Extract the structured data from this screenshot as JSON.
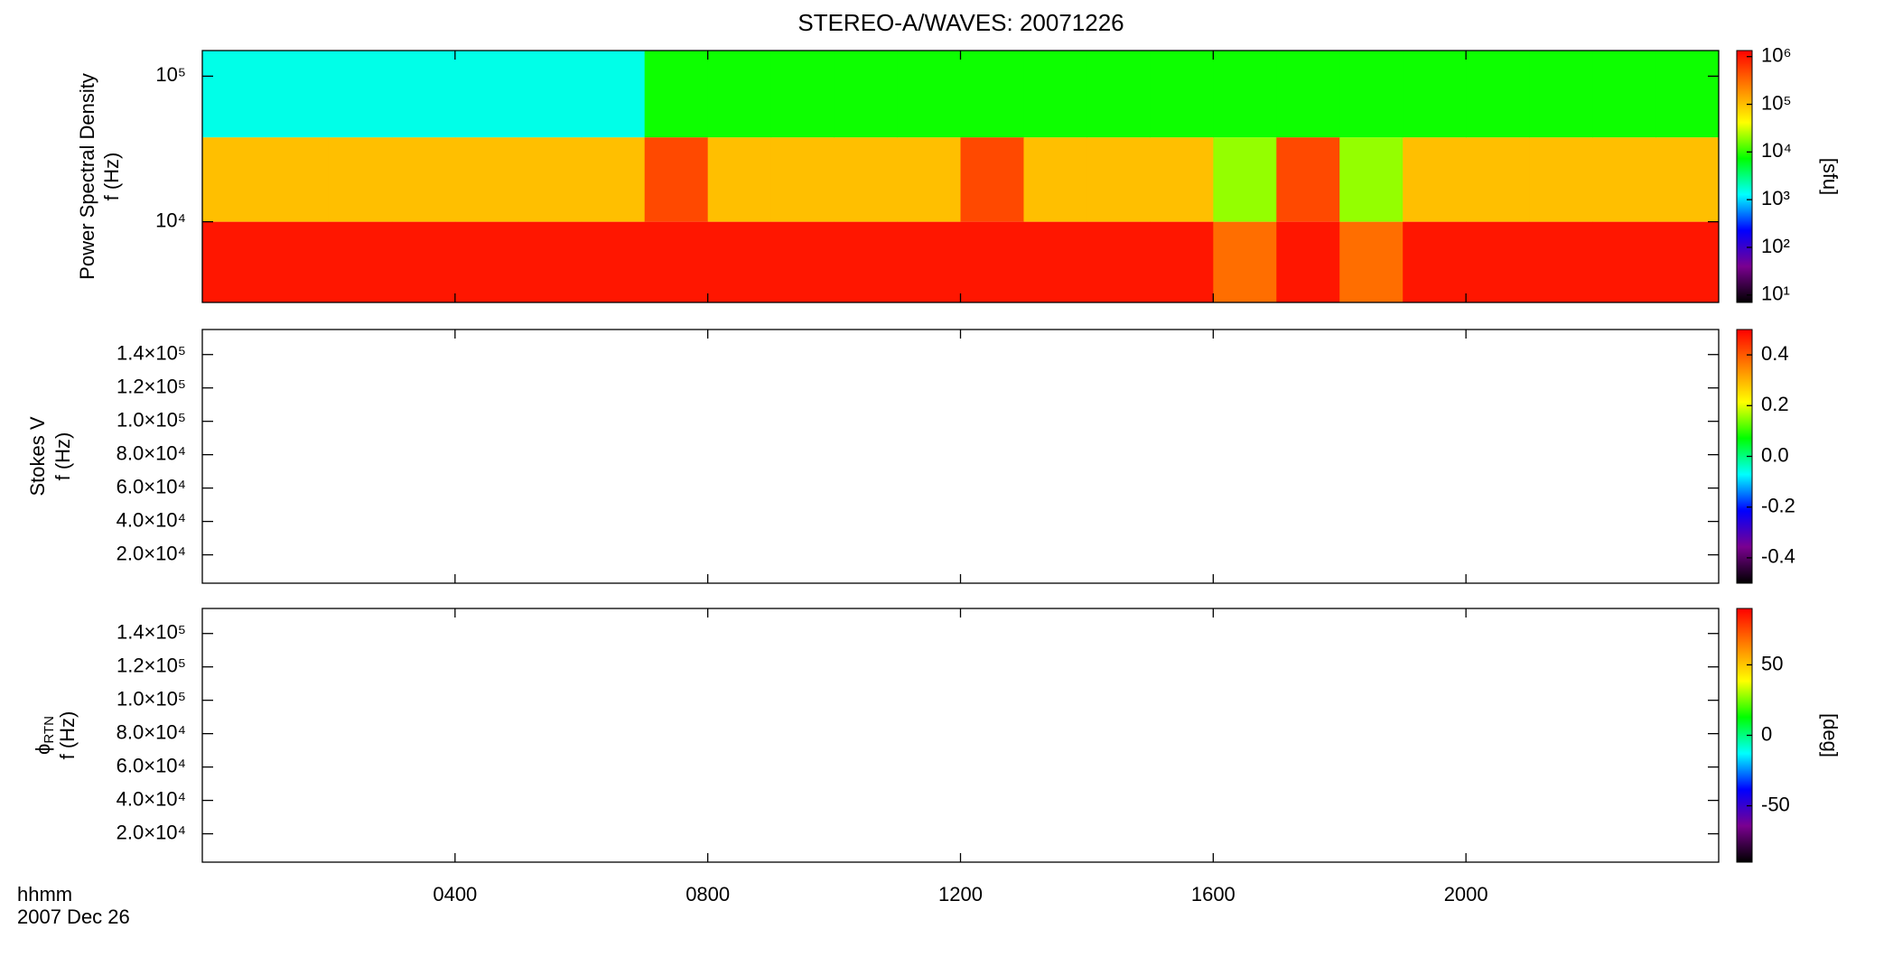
{
  "title": "STEREO-A/WAVES: 20071226",
  "xaxis": {
    "xlim": [
      0,
      24
    ],
    "xticks": [
      {
        "value": 4,
        "label": "0400"
      },
      {
        "value": 8,
        "label": "0800"
      },
      {
        "value": 12,
        "label": "1200"
      },
      {
        "value": 16,
        "label": "1600"
      },
      {
        "value": 20,
        "label": "2000"
      }
    ],
    "labels": [
      "hhmm",
      "2007 Dec 26"
    ]
  },
  "colormap": [
    "#000000",
    "#7a0090",
    "#0000ff",
    "#00ffff",
    "#00ff00",
    "#ffff00",
    "#ff8000",
    "#ff0000"
  ],
  "chart_data": [
    {
      "type": "heatmap",
      "ylabel": [
        "Power Spectral Density",
        "f (Hz)"
      ],
      "log_y": true,
      "ylim": [
        2790,
        150000
      ],
      "yticks": [
        {
          "value": 10000,
          "label": "10⁴"
        },
        {
          "value": 100000,
          "label": "10⁵"
        }
      ],
      "x": [
        0,
        1,
        2,
        3,
        4,
        5,
        6,
        7,
        8,
        9,
        10,
        11,
        12,
        13,
        14,
        15,
        16,
        17,
        18,
        19,
        20,
        21,
        22,
        23,
        24
      ],
      "y": [
        2790,
        10000,
        38000,
        150000
      ],
      "values": [
        [
          1000000,
          1000000,
          1000000,
          1000000,
          1000000,
          1000000,
          1000000,
          1000000,
          1000000,
          1000000,
          1000000,
          1000000,
          1000000,
          1000000,
          1000000,
          1000000,
          300000,
          1000000,
          300000,
          1000000,
          1000000,
          1000000,
          1000000,
          1000000
        ],
        [
          100000,
          100000,
          100000,
          100000,
          100000,
          100000,
          100000,
          500000,
          100000,
          100000,
          100000,
          100000,
          500000,
          100000,
          100000,
          100000,
          20000,
          500000,
          20000,
          100000,
          100000,
          100000,
          100000,
          100000
        ],
        [
          1500,
          1500,
          1500,
          1500,
          1500,
          1500,
          1500,
          8000,
          8000,
          8000,
          8000,
          8000,
          8000,
          8000,
          8000,
          8000,
          8000,
          8000,
          8000,
          8000,
          8000,
          8000,
          8000,
          8000
        ]
      ],
      "colorbar": {
        "log": true,
        "lim": [
          7,
          1340000
        ],
        "label": "[sfu]",
        "ticks": [
          {
            "value": 10,
            "label": "10¹"
          },
          {
            "value": 100,
            "label": "10²"
          },
          {
            "value": 1000,
            "label": "10³"
          },
          {
            "value": 10000,
            "label": "10⁴"
          },
          {
            "value": 100000,
            "label": "10⁵"
          },
          {
            "value": 1000000,
            "label": "10⁶"
          }
        ]
      }
    },
    {
      "type": "heatmap",
      "ylabel": [
        "Stokes V",
        "f (Hz)"
      ],
      "log_y": false,
      "ylim": [
        3000,
        155000
      ],
      "yticks": [
        {
          "value": 20000,
          "label": "2.0×10⁴"
        },
        {
          "value": 40000,
          "label": "4.0×10⁴"
        },
        {
          "value": 60000,
          "label": "6.0×10⁴"
        },
        {
          "value": 80000,
          "label": "8.0×10⁴"
        },
        {
          "value": 100000,
          "label": "1.0×10⁵"
        },
        {
          "value": 120000,
          "label": "1.2×10⁵"
        },
        {
          "value": 140000,
          "label": "1.4×10⁵"
        }
      ],
      "colorbar": {
        "log": false,
        "lim": [
          -0.5,
          0.5
        ],
        "ticks": [
          {
            "value": -0.4,
            "label": "-0.4"
          },
          {
            "value": -0.2,
            "label": "-0.2"
          },
          {
            "value": 0,
            "label": "0.0"
          },
          {
            "value": 0.2,
            "label": "0.2"
          },
          {
            "value": 0.4,
            "label": "0.4"
          }
        ]
      }
    },
    {
      "type": "heatmap",
      "ylabel": [
        "ϕ",
        "f (Hz)"
      ],
      "ylabel_sub": "RTN",
      "log_y": false,
      "ylim": [
        3000,
        155000
      ],
      "yticks": [
        {
          "value": 20000,
          "label": "2.0×10⁴"
        },
        {
          "value": 40000,
          "label": "4.0×10⁴"
        },
        {
          "value": 60000,
          "label": "6.0×10⁴"
        },
        {
          "value": 80000,
          "label": "8.0×10⁴"
        },
        {
          "value": 100000,
          "label": "1.0×10⁵"
        },
        {
          "value": 120000,
          "label": "1.2×10⁵"
        },
        {
          "value": 140000,
          "label": "1.4×10⁵"
        }
      ],
      "colorbar": {
        "log": false,
        "lim": [
          -90,
          90
        ],
        "label": "[deg]",
        "ticks": [
          {
            "value": -50,
            "label": "-50"
          },
          {
            "value": 0,
            "label": "0"
          },
          {
            "value": 50,
            "label": "50"
          }
        ]
      }
    }
  ]
}
